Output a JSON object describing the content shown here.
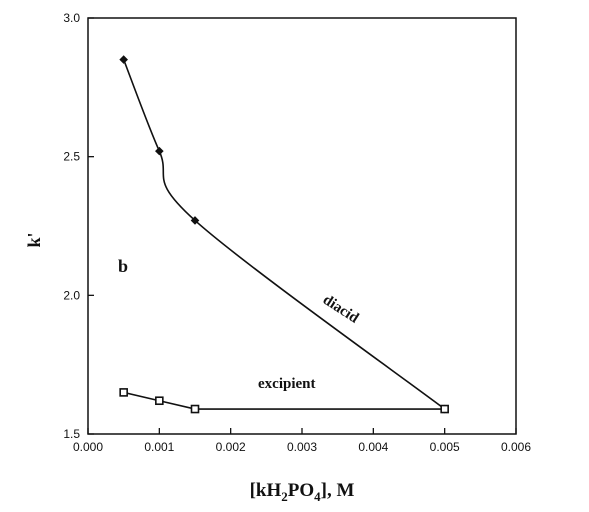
{
  "chart_data": {
    "type": "line",
    "panel_label": "b",
    "xlabel": {
      "main": "[kH",
      "sub1": "2",
      "mid": "PO",
      "sub2": "4",
      "tail": "], M"
    },
    "ylabel": "k'",
    "xlim": [
      0.0,
      0.006
    ],
    "ylim": [
      1.5,
      3.0
    ],
    "xticks": [
      0.0,
      0.001,
      0.002,
      0.003,
      0.004,
      0.005,
      0.006
    ],
    "xtick_labels": [
      "0.000",
      "0.001",
      "0.002",
      "0.003",
      "0.004",
      "0.005",
      "0.006"
    ],
    "yticks": [
      1.5,
      2.0,
      2.5,
      3.0
    ],
    "ytick_labels": [
      "1.5",
      "2.0",
      "2.5",
      "3.0"
    ],
    "grid": false,
    "series": [
      {
        "name": "diacid",
        "marker": "diamond",
        "smooth": true,
        "x": [
          0.0005,
          0.001,
          0.0015,
          0.005
        ],
        "y": [
          2.85,
          2.52,
          2.27,
          1.59
        ]
      },
      {
        "name": "excipient",
        "marker": "square",
        "smooth": false,
        "x": [
          0.0005,
          0.001,
          0.0015,
          0.005
        ],
        "y": [
          1.65,
          1.62,
          1.59,
          1.59
        ]
      }
    ]
  }
}
